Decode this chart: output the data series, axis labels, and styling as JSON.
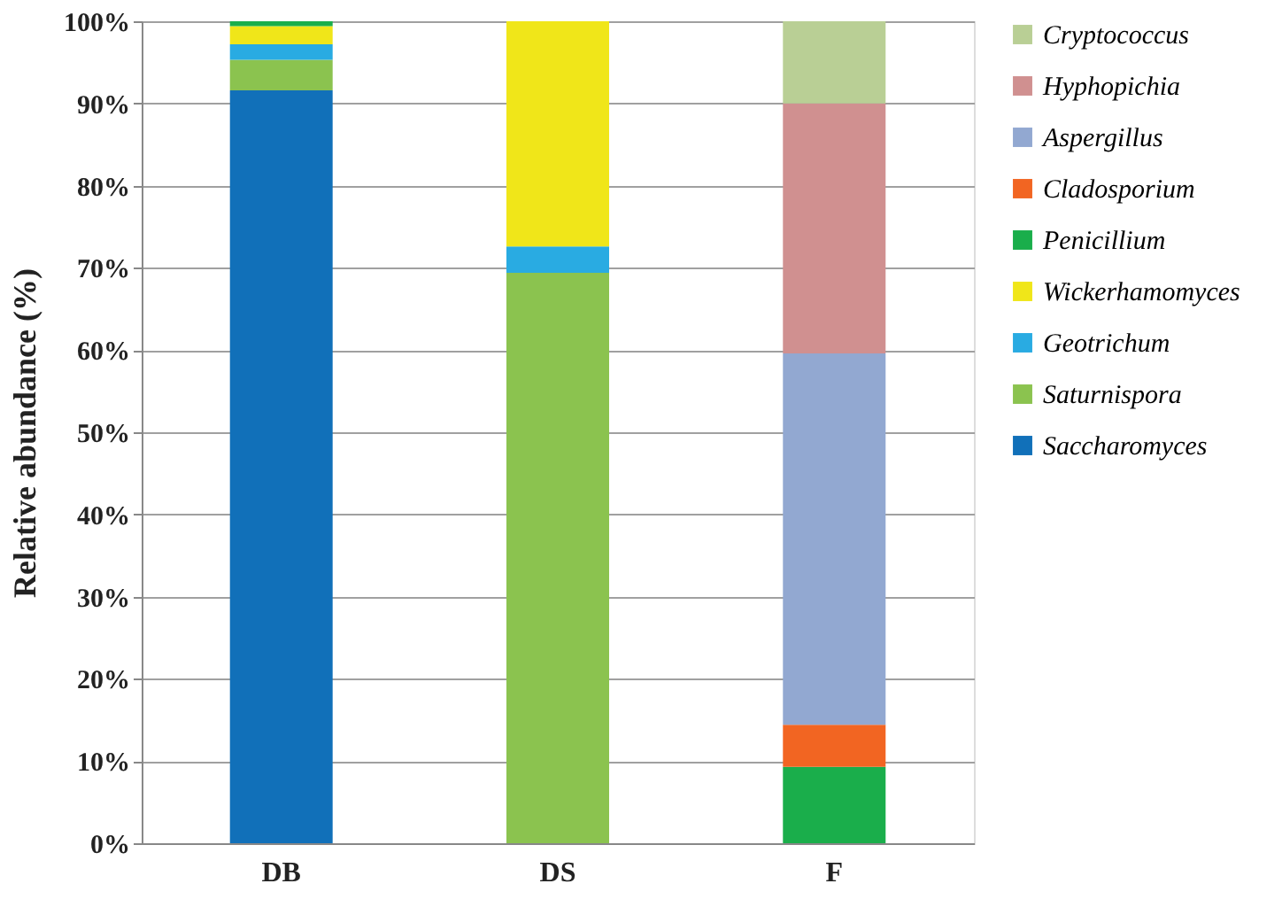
{
  "chart_data": {
    "type": "bar",
    "stacked": true,
    "ylabel": "Relative abundance (%)",
    "categories": [
      "DB",
      "DS",
      "F"
    ],
    "series": [
      {
        "name": "Saccharomyces",
        "color": "#1170b9",
        "values": [
          91.6,
          null,
          null
        ]
      },
      {
        "name": "Saturnispora",
        "color": "#8bc34f",
        "values": [
          3.7,
          69.4,
          null
        ]
      },
      {
        "name": "Geotrichum",
        "color": "#29abe2",
        "values": [
          1.9,
          3.2,
          null
        ]
      },
      {
        "name": "Wickerhamomyces",
        "color": "#f0e619",
        "values": [
          2.2,
          27.4,
          null
        ]
      },
      {
        "name": "Penicillium",
        "color": "#1aae4b",
        "values": [
          0.6,
          null,
          9.3
        ]
      },
      {
        "name": "Cladosporium",
        "color": "#f26522",
        "values": [
          null,
          null,
          5.1
        ]
      },
      {
        "name": "Aspergillus",
        "color": "#92a8d1",
        "values": [
          null,
          null,
          45.2
        ]
      },
      {
        "name": "Hyphopichia",
        "color": "#d09090",
        "values": [
          null,
          null,
          30.4
        ]
      },
      {
        "name": "Cryptococcus",
        "color": "#b9cf95",
        "values": [
          null,
          null,
          10.0
        ]
      }
    ],
    "ylim": [
      0,
      100
    ],
    "yticks": [
      {
        "value": 0,
        "label": "0%"
      },
      {
        "value": 10,
        "label": "10%"
      },
      {
        "value": 20,
        "label": "20%"
      },
      {
        "value": 30,
        "label": "30%"
      },
      {
        "value": 40,
        "label": "40%"
      },
      {
        "value": 50,
        "label": "50%"
      },
      {
        "value": 60,
        "label": "60%"
      },
      {
        "value": 70,
        "label": "70%"
      },
      {
        "value": 80,
        "label": "80%"
      },
      {
        "value": 90,
        "label": "90%"
      },
      {
        "value": 100,
        "label": "100%"
      }
    ],
    "grid": "y",
    "legend": "right"
  }
}
